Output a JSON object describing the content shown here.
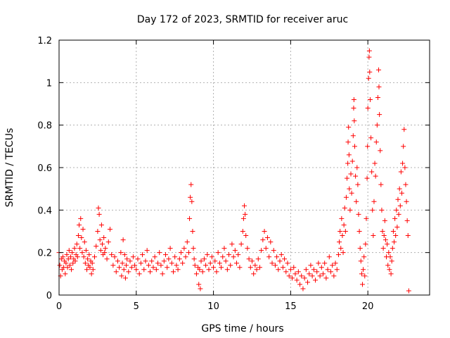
{
  "chart_data": {
    "type": "scatter",
    "title": "Day 172 of 2023, SRMTID for receiver aruc",
    "xlabel": "GPS time / hours",
    "ylabel": "SRMTID / TECUs",
    "xlim": [
      0,
      24
    ],
    "ylim": [
      0,
      1.2
    ],
    "x_ticks": [
      0,
      5,
      10,
      15,
      20
    ],
    "x_tick_labels": [
      "0",
      "5",
      "10",
      "15",
      "20"
    ],
    "y_ticks": [
      0,
      0.2,
      0.4,
      0.6,
      0.8,
      1.0,
      1.2
    ],
    "y_tick_labels": [
      "0",
      "0.2",
      "0.4",
      "0.6",
      "0.8",
      "1",
      "1.2"
    ],
    "grid": true,
    "marker": "+",
    "marker_color": "#ff0000",
    "series": [
      {
        "name": "SRMTID",
        "points": [
          [
            0.0,
            0.2
          ],
          [
            0.05,
            0.14
          ],
          [
            0.1,
            0.09
          ],
          [
            0.15,
            0.17
          ],
          [
            0.2,
            0.12
          ],
          [
            0.25,
            0.18
          ],
          [
            0.3,
            0.13
          ],
          [
            0.35,
            0.16
          ],
          [
            0.4,
            0.1
          ],
          [
            0.45,
            0.15
          ],
          [
            0.5,
            0.19
          ],
          [
            0.55,
            0.13
          ],
          [
            0.6,
            0.17
          ],
          [
            0.65,
            0.21
          ],
          [
            0.7,
            0.14
          ],
          [
            0.75,
            0.18
          ],
          [
            0.8,
            0.12
          ],
          [
            0.85,
            0.2
          ],
          [
            0.9,
            0.15
          ],
          [
            0.95,
            0.17
          ],
          [
            1.0,
            0.22
          ],
          [
            1.05,
            0.16
          ],
          [
            1.1,
            0.19
          ],
          [
            1.15,
            0.24
          ],
          [
            1.2,
            0.18
          ],
          [
            1.25,
            0.28
          ],
          [
            1.3,
            0.33
          ],
          [
            1.35,
            0.22
          ],
          [
            1.4,
            0.36
          ],
          [
            1.45,
            0.27
          ],
          [
            1.5,
            0.2
          ],
          [
            1.55,
            0.31
          ],
          [
            1.6,
            0.18
          ],
          [
            1.65,
            0.25
          ],
          [
            1.7,
            0.15
          ],
          [
            1.75,
            0.21
          ],
          [
            1.8,
            0.12
          ],
          [
            1.85,
            0.17
          ],
          [
            1.9,
            0.14
          ],
          [
            1.95,
            0.19
          ],
          [
            2.0,
            0.13
          ],
          [
            2.05,
            0.16
          ],
          [
            2.1,
            0.1
          ],
          [
            2.15,
            0.15
          ],
          [
            2.2,
            0.12
          ],
          [
            2.3,
            0.18
          ],
          [
            2.4,
            0.23
          ],
          [
            2.5,
            0.3
          ],
          [
            2.55,
            0.41
          ],
          [
            2.6,
            0.38
          ],
          [
            2.65,
            0.26
          ],
          [
            2.7,
            0.21
          ],
          [
            2.75,
            0.33
          ],
          [
            2.8,
            0.24
          ],
          [
            2.85,
            0.19
          ],
          [
            2.9,
            0.27
          ],
          [
            2.95,
            0.2
          ],
          [
            3.0,
            0.22
          ],
          [
            3.1,
            0.17
          ],
          [
            3.2,
            0.25
          ],
          [
            3.3,
            0.31
          ],
          [
            3.4,
            0.19
          ],
          [
            3.5,
            0.14
          ],
          [
            3.6,
            0.18
          ],
          [
            3.7,
            0.11
          ],
          [
            3.8,
            0.16
          ],
          [
            3.9,
            0.13
          ],
          [
            4.0,
            0.2
          ],
          [
            4.05,
            0.09
          ],
          [
            4.1,
            0.15
          ],
          [
            4.15,
            0.26
          ],
          [
            4.2,
            0.12
          ],
          [
            4.25,
            0.19
          ],
          [
            4.3,
            0.08
          ],
          [
            4.35,
            0.14
          ],
          [
            4.4,
            0.17
          ],
          [
            4.5,
            0.11
          ],
          [
            4.6,
            0.16
          ],
          [
            4.7,
            0.13
          ],
          [
            4.8,
            0.18
          ],
          [
            4.9,
            0.14
          ],
          [
            5.0,
            0.12
          ],
          [
            5.1,
            0.17
          ],
          [
            5.2,
            0.1
          ],
          [
            5.3,
            0.15
          ],
          [
            5.4,
            0.19
          ],
          [
            5.5,
            0.12
          ],
          [
            5.6,
            0.16
          ],
          [
            5.7,
            0.21
          ],
          [
            5.8,
            0.14
          ],
          [
            5.9,
            0.11
          ],
          [
            6.0,
            0.16
          ],
          [
            6.1,
            0.13
          ],
          [
            6.2,
            0.18
          ],
          [
            6.3,
            0.12
          ],
          [
            6.4,
            0.15
          ],
          [
            6.5,
            0.2
          ],
          [
            6.6,
            0.14
          ],
          [
            6.7,
            0.1
          ],
          [
            6.8,
            0.16
          ],
          [
            6.9,
            0.19
          ],
          [
            7.0,
            0.13
          ],
          [
            7.1,
            0.17
          ],
          [
            7.2,
            0.22
          ],
          [
            7.3,
            0.15
          ],
          [
            7.4,
            0.11
          ],
          [
            7.5,
            0.18
          ],
          [
            7.6,
            0.14
          ],
          [
            7.7,
            0.12
          ],
          [
            7.8,
            0.17
          ],
          [
            7.9,
            0.2
          ],
          [
            8.0,
            0.15
          ],
          [
            8.1,
            0.22
          ],
          [
            8.2,
            0.18
          ],
          [
            8.3,
            0.25
          ],
          [
            8.4,
            0.2
          ],
          [
            8.45,
            0.36
          ],
          [
            8.5,
            0.46
          ],
          [
            8.55,
            0.52
          ],
          [
            8.6,
            0.44
          ],
          [
            8.65,
            0.3
          ],
          [
            8.7,
            0.22
          ],
          [
            8.75,
            0.17
          ],
          [
            8.8,
            0.14
          ],
          [
            8.9,
            0.1
          ],
          [
            9.0,
            0.13
          ],
          [
            9.05,
            0.05
          ],
          [
            9.1,
            0.12
          ],
          [
            9.15,
            0.03
          ],
          [
            9.2,
            0.16
          ],
          [
            9.3,
            0.11
          ],
          [
            9.4,
            0.17
          ],
          [
            9.5,
            0.14
          ],
          [
            9.6,
            0.19
          ],
          [
            9.7,
            0.12
          ],
          [
            9.8,
            0.15
          ],
          [
            9.9,
            0.18
          ],
          [
            10.0,
            0.13
          ],
          [
            10.1,
            0.16
          ],
          [
            10.2,
            0.11
          ],
          [
            10.3,
            0.2
          ],
          [
            10.4,
            0.15
          ],
          [
            10.5,
            0.13
          ],
          [
            10.6,
            0.18
          ],
          [
            10.7,
            0.22
          ],
          [
            10.8,
            0.16
          ],
          [
            10.9,
            0.12
          ],
          [
            11.0,
            0.19
          ],
          [
            11.1,
            0.14
          ],
          [
            11.2,
            0.24
          ],
          [
            11.3,
            0.18
          ],
          [
            11.4,
            0.21
          ],
          [
            11.5,
            0.15
          ],
          [
            11.6,
            0.19
          ],
          [
            11.7,
            0.13
          ],
          [
            11.8,
            0.24
          ],
          [
            11.9,
            0.3
          ],
          [
            11.95,
            0.36
          ],
          [
            12.0,
            0.42
          ],
          [
            12.05,
            0.38
          ],
          [
            12.1,
            0.28
          ],
          [
            12.2,
            0.22
          ],
          [
            12.3,
            0.17
          ],
          [
            12.4,
            0.13
          ],
          [
            12.5,
            0.16
          ],
          [
            12.6,
            0.1
          ],
          [
            12.7,
            0.14
          ],
          [
            12.8,
            0.12
          ],
          [
            12.9,
            0.17
          ],
          [
            13.0,
            0.13
          ],
          [
            13.1,
            0.21
          ],
          [
            13.2,
            0.26
          ],
          [
            13.3,
            0.3
          ],
          [
            13.4,
            0.22
          ],
          [
            13.5,
            0.27
          ],
          [
            13.6,
            0.18
          ],
          [
            13.7,
            0.25
          ],
          [
            13.8,
            0.15
          ],
          [
            13.9,
            0.21
          ],
          [
            14.0,
            0.14
          ],
          [
            14.1,
            0.18
          ],
          [
            14.2,
            0.12
          ],
          [
            14.3,
            0.16
          ],
          [
            14.4,
            0.19
          ],
          [
            14.5,
            0.13
          ],
          [
            14.6,
            0.17
          ],
          [
            14.7,
            0.11
          ],
          [
            14.8,
            0.15
          ],
          [
            14.9,
            0.09
          ],
          [
            15.0,
            0.12
          ],
          [
            15.1,
            0.08
          ],
          [
            15.2,
            0.13
          ],
          [
            15.3,
            0.1
          ],
          [
            15.4,
            0.07
          ],
          [
            15.5,
            0.11
          ],
          [
            15.6,
            0.05
          ],
          [
            15.7,
            0.09
          ],
          [
            15.8,
            0.03
          ],
          [
            15.9,
            0.08
          ],
          [
            16.0,
            0.12
          ],
          [
            16.1,
            0.06
          ],
          [
            16.2,
            0.1
          ],
          [
            16.3,
            0.14
          ],
          [
            16.4,
            0.09
          ],
          [
            16.5,
            0.12
          ],
          [
            16.6,
            0.07
          ],
          [
            16.7,
            0.11
          ],
          [
            16.8,
            0.15
          ],
          [
            16.9,
            0.09
          ],
          [
            17.0,
            0.13
          ],
          [
            17.1,
            0.1
          ],
          [
            17.2,
            0.15
          ],
          [
            17.3,
            0.08
          ],
          [
            17.4,
            0.12
          ],
          [
            17.5,
            0.18
          ],
          [
            17.6,
            0.11
          ],
          [
            17.7,
            0.14
          ],
          [
            17.8,
            0.09
          ],
          [
            17.9,
            0.15
          ],
          [
            18.0,
            0.12
          ],
          [
            18.1,
            0.19
          ],
          [
            18.15,
            0.25
          ],
          [
            18.2,
            0.3
          ],
          [
            18.25,
            0.22
          ],
          [
            18.3,
            0.36
          ],
          [
            18.35,
            0.28
          ],
          [
            18.4,
            0.2
          ],
          [
            18.45,
            0.33
          ],
          [
            18.5,
            0.41
          ],
          [
            18.55,
            0.3
          ],
          [
            18.6,
            0.46
          ],
          [
            18.65,
            0.55
          ],
          [
            18.7,
            0.62
          ],
          [
            18.72,
            0.72
          ],
          [
            18.75,
            0.79
          ],
          [
            18.78,
            0.66
          ],
          [
            18.8,
            0.5
          ],
          [
            18.85,
            0.4
          ],
          [
            18.9,
            0.57
          ],
          [
            18.95,
            0.48
          ],
          [
            19.0,
            0.63
          ],
          [
            19.05,
            0.75
          ],
          [
            19.08,
            0.88
          ],
          [
            19.1,
            0.92
          ],
          [
            19.12,
            0.82
          ],
          [
            19.15,
            0.7
          ],
          [
            19.2,
            0.56
          ],
          [
            19.25,
            0.44
          ],
          [
            19.3,
            0.6
          ],
          [
            19.35,
            0.52
          ],
          [
            19.4,
            0.38
          ],
          [
            19.45,
            0.3
          ],
          [
            19.5,
            0.22
          ],
          [
            19.55,
            0.16
          ],
          [
            19.6,
            0.1
          ],
          [
            19.65,
            0.05
          ],
          [
            19.7,
            0.12
          ],
          [
            19.75,
            0.18
          ],
          [
            19.8,
            0.09
          ],
          [
            19.85,
            0.24
          ],
          [
            19.9,
            0.36
          ],
          [
            19.95,
            0.55
          ],
          [
            19.98,
            0.7
          ],
          [
            20.0,
            0.88
          ],
          [
            20.05,
            1.02
          ],
          [
            20.08,
            1.12
          ],
          [
            20.1,
            1.15
          ],
          [
            20.12,
            1.05
          ],
          [
            20.15,
            0.92
          ],
          [
            20.2,
            0.74
          ],
          [
            20.25,
            0.58
          ],
          [
            20.3,
            0.4
          ],
          [
            20.35,
            0.28
          ],
          [
            20.4,
            0.44
          ],
          [
            20.45,
            0.62
          ],
          [
            20.5,
            0.56
          ],
          [
            20.55,
            0.72
          ],
          [
            20.6,
            0.8
          ],
          [
            20.65,
            0.93
          ],
          [
            20.7,
            1.06
          ],
          [
            20.72,
            0.98
          ],
          [
            20.75,
            0.85
          ],
          [
            20.8,
            0.68
          ],
          [
            20.85,
            0.52
          ],
          [
            20.9,
            0.4
          ],
          [
            20.95,
            0.3
          ],
          [
            21.0,
            0.22
          ],
          [
            21.05,
            0.28
          ],
          [
            21.1,
            0.35
          ],
          [
            21.15,
            0.26
          ],
          [
            21.2,
            0.18
          ],
          [
            21.25,
            0.24
          ],
          [
            21.3,
            0.14
          ],
          [
            21.35,
            0.2
          ],
          [
            21.4,
            0.12
          ],
          [
            21.45,
            0.18
          ],
          [
            21.5,
            0.1
          ],
          [
            21.55,
            0.16
          ],
          [
            21.6,
            0.22
          ],
          [
            21.65,
            0.3
          ],
          [
            21.7,
            0.25
          ],
          [
            21.75,
            0.36
          ],
          [
            21.8,
            0.28
          ],
          [
            21.85,
            0.4
          ],
          [
            21.9,
            0.32
          ],
          [
            21.95,
            0.45
          ],
          [
            22.0,
            0.38
          ],
          [
            22.05,
            0.5
          ],
          [
            22.1,
            0.42
          ],
          [
            22.15,
            0.58
          ],
          [
            22.2,
            0.48
          ],
          [
            22.25,
            0.62
          ],
          [
            22.3,
            0.7
          ],
          [
            22.35,
            0.78
          ],
          [
            22.4,
            0.6
          ],
          [
            22.45,
            0.52
          ],
          [
            22.5,
            0.44
          ],
          [
            22.55,
            0.35
          ],
          [
            22.6,
            0.28
          ],
          [
            22.65,
            0.02
          ]
        ]
      }
    ]
  }
}
